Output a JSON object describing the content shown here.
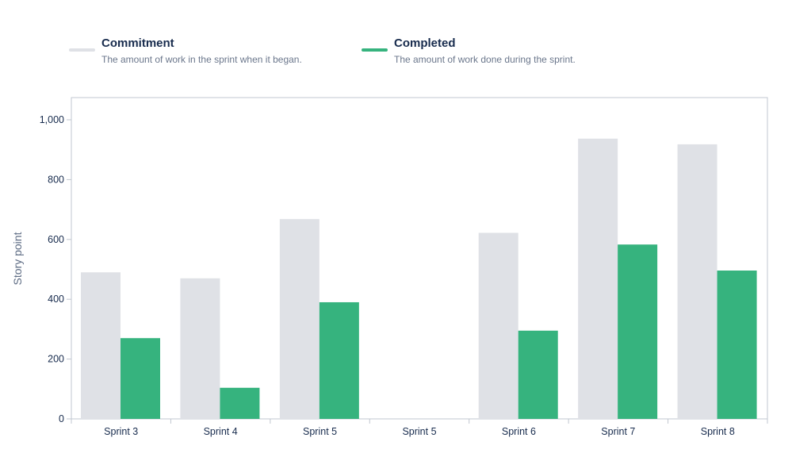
{
  "legend": [
    {
      "title": "Commitment",
      "description": "The amount of work in the sprint when it began.",
      "color": "#dfe1e6"
    },
    {
      "title": "Completed",
      "description": "The amount of work done during the sprint.",
      "color": "#36b37e"
    }
  ],
  "chart_data": {
    "type": "bar",
    "categories": [
      "Sprint 3",
      "Sprint 4",
      "Sprint 5",
      "Sprint 5",
      "Sprint 6",
      "Sprint 7",
      "Sprint 8"
    ],
    "series": [
      {
        "name": "Commitment",
        "color": "#dfe1e6",
        "values": [
          490,
          470,
          668,
          0,
          622,
          937,
          918
        ]
      },
      {
        "name": "Completed",
        "color": "#36b37e",
        "values": [
          270,
          104,
          390,
          0,
          295,
          583,
          496
        ]
      }
    ],
    "ylabel": "Story point",
    "xlabel": "",
    "ylim": [
      0,
      1000
    ],
    "yticks": [
      0,
      200,
      400,
      600,
      800,
      1000
    ],
    "ytick_labels": [
      "0",
      "200",
      "400",
      "600",
      "800",
      "1,000"
    ],
    "grid": false,
    "legend_position": "top-left"
  }
}
